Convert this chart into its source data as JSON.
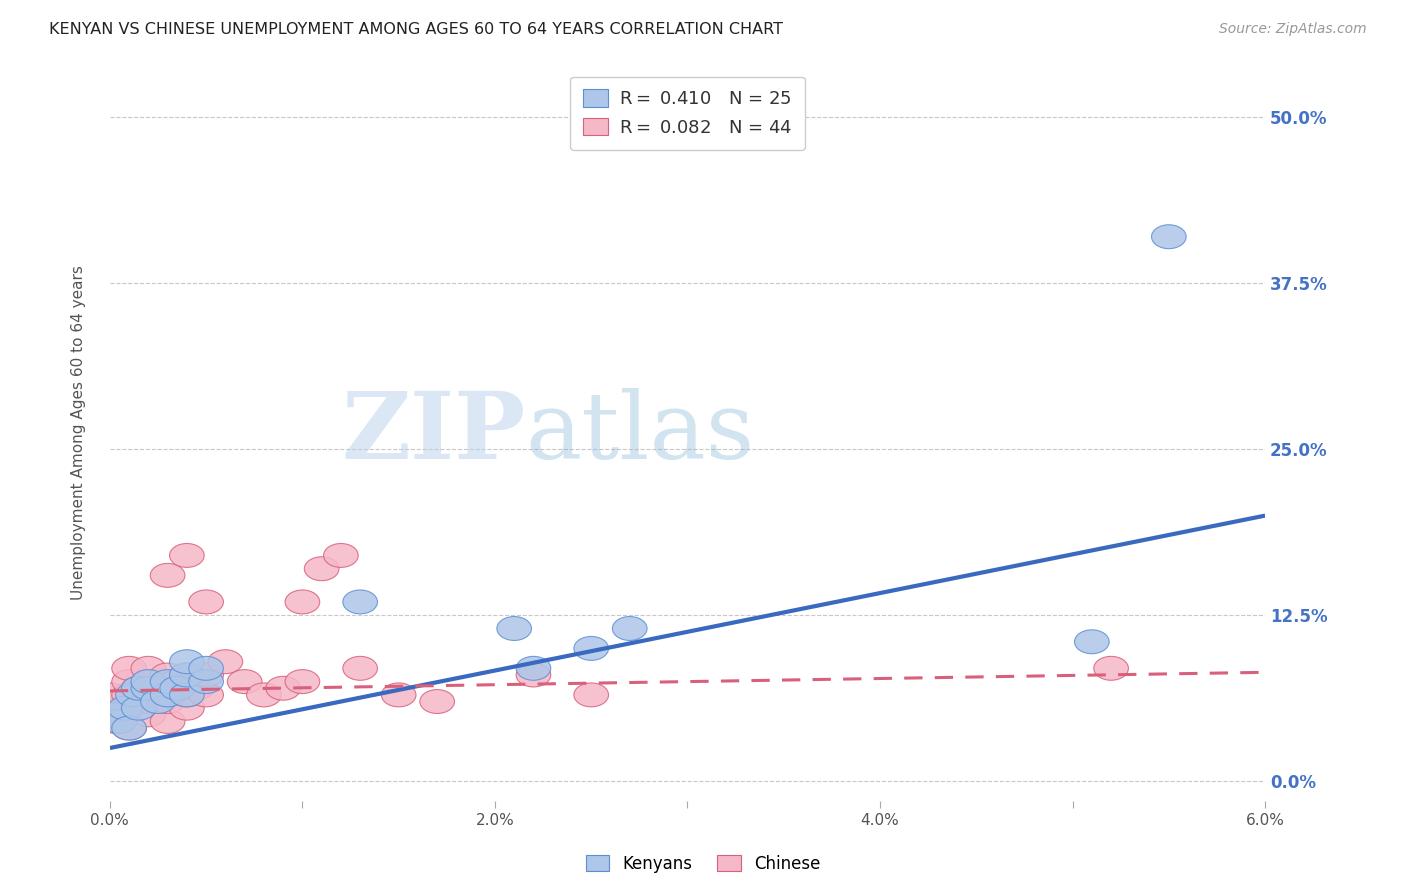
{
  "title": "KENYAN VS CHINESE UNEMPLOYMENT AMONG AGES 60 TO 64 YEARS CORRELATION CHART",
  "source": "Source: ZipAtlas.com",
  "ylabel": "Unemployment Among Ages 60 to 64 years",
  "xlim": [
    0.0,
    0.06
  ],
  "ylim": [
    -0.015,
    0.54
  ],
  "xtick_positions": [
    0.0,
    0.01,
    0.02,
    0.03,
    0.04,
    0.05,
    0.06
  ],
  "xticklabels": [
    "0.0%",
    "",
    "2.0%",
    "",
    "4.0%",
    "",
    "6.0%"
  ],
  "ytick_positions": [
    0.0,
    0.125,
    0.25,
    0.375,
    0.5
  ],
  "ytick_labels_right": [
    "0.0%",
    "12.5%",
    "25.0%",
    "37.5%",
    "50.0%"
  ],
  "right_ytick_color": "#4472c4",
  "grid_color": "#c8c8c8",
  "background_color": "#ffffff",
  "kenyan_color": "#aec6e8",
  "kenyan_edge_color": "#5b8fd4",
  "kenyan_line_color": "#3a6abf",
  "chinese_color": "#f5b8c8",
  "chinese_edge_color": "#d9607a",
  "chinese_line_color": "#d9607a",
  "kenyan_R": "0.410",
  "kenyan_N": "25",
  "chinese_R": "0.082",
  "chinese_N": "44",
  "watermark_zip": "ZIP",
  "watermark_atlas": "atlas",
  "kenyan_x": [
    0.0003,
    0.0005,
    0.0008,
    0.001,
    0.0012,
    0.0015,
    0.0015,
    0.002,
    0.002,
    0.0025,
    0.003,
    0.003,
    0.0035,
    0.004,
    0.004,
    0.004,
    0.005,
    0.005,
    0.013,
    0.021,
    0.022,
    0.025,
    0.027,
    0.051,
    0.055
  ],
  "kenyan_y": [
    0.05,
    0.045,
    0.055,
    0.04,
    0.065,
    0.055,
    0.07,
    0.07,
    0.075,
    0.06,
    0.065,
    0.075,
    0.07,
    0.065,
    0.08,
    0.09,
    0.075,
    0.085,
    0.135,
    0.115,
    0.085,
    0.1,
    0.115,
    0.105,
    0.41
  ],
  "chinese_x": [
    0.0,
    0.0,
    0.0003,
    0.0005,
    0.001,
    0.001,
    0.001,
    0.001,
    0.001,
    0.0015,
    0.002,
    0.002,
    0.002,
    0.002,
    0.0025,
    0.003,
    0.003,
    0.003,
    0.003,
    0.003,
    0.0035,
    0.004,
    0.004,
    0.004,
    0.004,
    0.004,
    0.0045,
    0.005,
    0.005,
    0.005,
    0.006,
    0.007,
    0.008,
    0.009,
    0.01,
    0.01,
    0.011,
    0.012,
    0.013,
    0.015,
    0.017,
    0.022,
    0.025,
    0.052
  ],
  "chinese_y": [
    0.055,
    0.065,
    0.045,
    0.06,
    0.04,
    0.055,
    0.065,
    0.075,
    0.085,
    0.07,
    0.05,
    0.06,
    0.075,
    0.085,
    0.07,
    0.045,
    0.06,
    0.07,
    0.08,
    0.155,
    0.075,
    0.055,
    0.065,
    0.075,
    0.08,
    0.17,
    0.07,
    0.065,
    0.08,
    0.135,
    0.09,
    0.075,
    0.065,
    0.07,
    0.075,
    0.135,
    0.16,
    0.17,
    0.085,
    0.065,
    0.06,
    0.08,
    0.065,
    0.085
  ],
  "blue_line_x": [
    0.0,
    0.06
  ],
  "blue_line_y": [
    0.025,
    0.2
  ],
  "pink_line_x": [
    0.0,
    0.06
  ],
  "pink_line_y": [
    0.068,
    0.082
  ]
}
